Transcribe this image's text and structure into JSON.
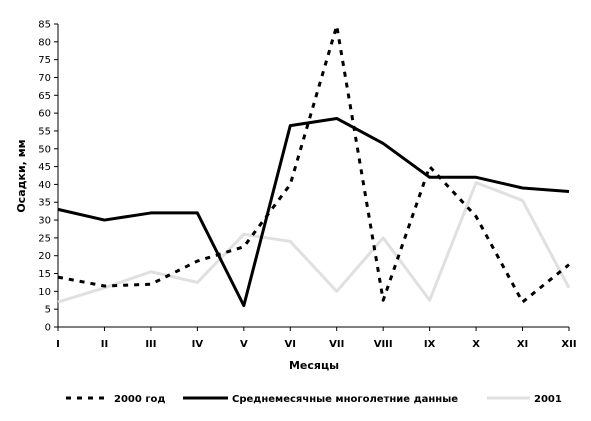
{
  "chart_data": {
    "type": "line",
    "title": "",
    "xlabel": "Месяцы",
    "ylabel": "Осадки, мм",
    "categories": [
      "I",
      "II",
      "III",
      "IV",
      "V",
      "VI",
      "VII",
      "VIII",
      "IX",
      "X",
      "XI",
      "XII"
    ],
    "ylim": [
      0,
      85
    ],
    "yticks": [
      "0",
      "5",
      "10",
      "15",
      "20",
      "25",
      "30",
      "35",
      "40",
      "45",
      "50",
      "55",
      "60",
      "65",
      "70",
      "75",
      "80",
      "85"
    ],
    "grid": false,
    "legend_position": "bottom",
    "series": [
      {
        "name": "2000 год",
        "style": "dashed",
        "color": "#000000",
        "values": [
          14,
          11.5,
          12,
          18.5,
          22.5,
          40,
          84.5,
          7.5,
          45,
          31,
          7,
          17.5
        ]
      },
      {
        "name": "Среднемесячные многолетние данные",
        "style": "solid",
        "color": "#000000",
        "values": [
          33,
          30,
          32,
          32,
          6,
          56.5,
          58.5,
          51.5,
          42,
          42,
          39,
          38
        ]
      },
      {
        "name": "2001",
        "style": "solid",
        "color": "#e0e0e0",
        "values": [
          7,
          11,
          15.5,
          12.5,
          26,
          24,
          10,
          25,
          7.5,
          40.5,
          35.5,
          11
        ]
      }
    ]
  }
}
